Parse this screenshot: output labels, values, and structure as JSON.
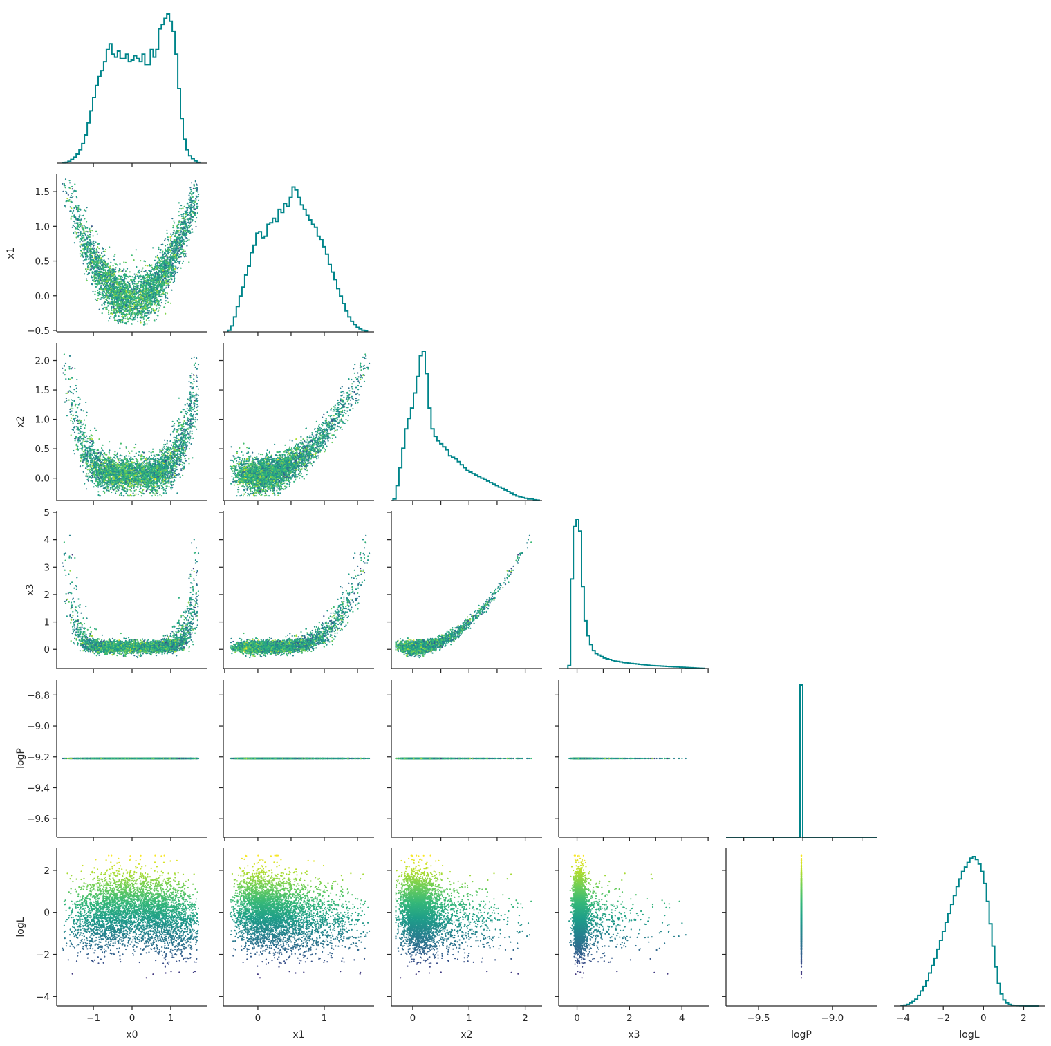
{
  "colors": {
    "histogram": "#00858a",
    "axis": "#262626",
    "colormap": "viridis",
    "viridis": [
      "#440154",
      "#482777",
      "#3e4989",
      "#31688e",
      "#26828e",
      "#1f9e89",
      "#35b779",
      "#6ece58",
      "#b5de2b",
      "#fde725"
    ]
  },
  "chart_data": {
    "type": "scatter",
    "layout": "corner-plot (lower triangle scatter matrix with 1-D histograms on diagonal)",
    "variables": [
      "x0",
      "x1",
      "x2",
      "x3",
      "logP",
      "logL"
    ],
    "axis_labels": {
      "x0": "x0",
      "x1": "x1",
      "x2": "x2",
      "x3": "x3",
      "logP": "logP",
      "logL": "logL"
    },
    "point_color_variable": "logL",
    "ranges": {
      "x0": [
        -1.95,
        1.95
      ],
      "x1": [
        -0.52,
        1.75
      ],
      "x2": [
        -0.38,
        2.3
      ],
      "x3": [
        -0.7,
        5.05
      ],
      "logP": [
        -9.72,
        -8.7
      ],
      "logL": [
        -4.45,
        3.05
      ]
    },
    "ticks": {
      "x0": [
        -1,
        0,
        1
      ],
      "x1": [
        -0.5,
        0.0,
        0.5,
        1.0,
        1.5
      ],
      "x1_bottom": [
        0,
        1
      ],
      "x2": [
        0.0,
        0.5,
        1.0,
        1.5,
        2.0
      ],
      "x2_bottom": [
        0,
        1,
        2
      ],
      "x3": [
        0,
        1,
        2,
        3,
        4,
        5
      ],
      "x3_bottom": [
        0,
        2,
        4
      ],
      "logP": [
        -9.6,
        -9.4,
        -9.2,
        -9.0,
        -8.8
      ],
      "logP_bottom": [
        -9.5,
        -9.0
      ],
      "logL": [
        -4,
        -2,
        0,
        2
      ],
      "logL_bottom": [
        -4,
        -2,
        0,
        2
      ]
    },
    "tick_labels": {
      "x0": [
        "−1",
        "0",
        "1"
      ],
      "x1": [
        "−0.5",
        "0.0",
        "0.5",
        "1.0",
        "1.5"
      ],
      "x1_bottom": [
        "0",
        "1"
      ],
      "x2": [
        "0.0",
        "0.5",
        "1.0",
        "1.5",
        "2.0"
      ],
      "x2_bottom": [
        "0",
        "1",
        "2"
      ],
      "x3": [
        "0",
        "1",
        "2",
        "3",
        "4",
        "5"
      ],
      "x3_bottom": [
        "0",
        "2",
        "4"
      ],
      "logP": [
        "−9.6",
        "−9.4",
        "−9.2",
        "−9.0",
        "−8.8"
      ],
      "logP_bottom": [
        "−9.5",
        "−9.0"
      ],
      "logL": [
        "−4",
        "−2",
        "0",
        "2"
      ],
      "logL_bottom": [
        "−4",
        "−2",
        "0",
        "2"
      ]
    },
    "logP_constant_value": -9.21,
    "histograms": {
      "x0": {
        "range": [
          -1.8,
          1.75
        ],
        "heights": [
          0.002,
          0.006,
          0.012,
          0.025,
          0.04,
          0.06,
          0.09,
          0.13,
          0.19,
          0.27,
          0.35,
          0.44,
          0.52,
          0.58,
          0.62,
          0.68,
          0.76,
          0.8,
          0.73,
          0.71,
          0.75,
          0.7,
          0.7,
          0.73,
          0.68,
          0.69,
          0.72,
          0.7,
          0.68,
          0.73,
          0.66,
          0.66,
          0.76,
          0.71,
          0.76,
          0.9,
          0.93,
          0.97,
          1.0,
          0.95,
          0.88,
          0.73,
          0.5,
          0.3,
          0.16,
          0.09,
          0.05,
          0.03,
          0.015,
          0.005
        ]
      },
      "x1": {
        "range": [
          -0.45,
          1.65
        ],
        "heights": [
          0.01,
          0.04,
          0.1,
          0.17,
          0.24,
          0.3,
          0.38,
          0.44,
          0.53,
          0.58,
          0.66,
          0.67,
          0.63,
          0.64,
          0.72,
          0.73,
          0.76,
          0.74,
          0.82,
          0.8,
          0.86,
          0.84,
          0.9,
          0.97,
          0.95,
          0.9,
          0.85,
          0.82,
          0.78,
          0.75,
          0.72,
          0.7,
          0.64,
          0.62,
          0.57,
          0.52,
          0.45,
          0.4,
          0.35,
          0.29,
          0.24,
          0.19,
          0.14,
          0.1,
          0.07,
          0.05,
          0.03,
          0.02,
          0.01,
          0.005
        ]
      },
      "x2": {
        "range": [
          -0.35,
          2.25
        ],
        "heights": [
          0.01,
          0.1,
          0.22,
          0.35,
          0.48,
          0.55,
          0.62,
          0.72,
          0.83,
          0.97,
          1.0,
          0.85,
          0.62,
          0.48,
          0.43,
          0.4,
          0.38,
          0.36,
          0.34,
          0.3,
          0.29,
          0.28,
          0.26,
          0.24,
          0.22,
          0.2,
          0.19,
          0.18,
          0.17,
          0.16,
          0.15,
          0.14,
          0.13,
          0.12,
          0.11,
          0.1,
          0.09,
          0.08,
          0.07,
          0.06,
          0.05,
          0.04,
          0.03,
          0.025,
          0.02,
          0.015,
          0.01,
          0.01,
          0.005,
          0.003
        ]
      },
      "x3": {
        "range": [
          -0.35,
          4.85
        ],
        "heights": [
          0.02,
          0.6,
          0.95,
          1.0,
          0.92,
          0.55,
          0.32,
          0.22,
          0.16,
          0.12,
          0.1,
          0.09,
          0.08,
          0.07,
          0.065,
          0.06,
          0.055,
          0.05,
          0.047,
          0.044,
          0.04,
          0.038,
          0.036,
          0.034,
          0.032,
          0.03,
          0.028,
          0.026,
          0.024,
          0.022,
          0.02,
          0.019,
          0.018,
          0.017,
          0.016,
          0.015,
          0.014,
          0.013,
          0.012,
          0.011,
          0.01,
          0.009,
          0.008,
          0.007,
          0.006,
          0.005,
          0.004,
          0.003,
          0.002,
          0.001
        ]
      },
      "logP": {
        "range": [
          -9.72,
          -8.7
        ],
        "spike_at": -9.21,
        "spike_height": 1.0
      },
      "logL": {
        "range": [
          -4.1,
          2.75
        ],
        "heights": [
          0.003,
          0.006,
          0.01,
          0.02,
          0.03,
          0.045,
          0.07,
          0.1,
          0.13,
          0.17,
          0.22,
          0.27,
          0.32,
          0.38,
          0.44,
          0.5,
          0.56,
          0.62,
          0.68,
          0.74,
          0.8,
          0.85,
          0.9,
          0.93,
          0.96,
          0.99,
          1.0,
          0.98,
          0.95,
          0.9,
          0.82,
          0.7,
          0.55,
          0.4,
          0.26,
          0.15,
          0.08,
          0.04,
          0.02,
          0.01,
          0.005,
          0.003,
          0.002,
          0.001,
          0.001,
          0.0,
          0.0,
          0.0,
          0.0,
          0.0
        ]
      }
    }
  }
}
